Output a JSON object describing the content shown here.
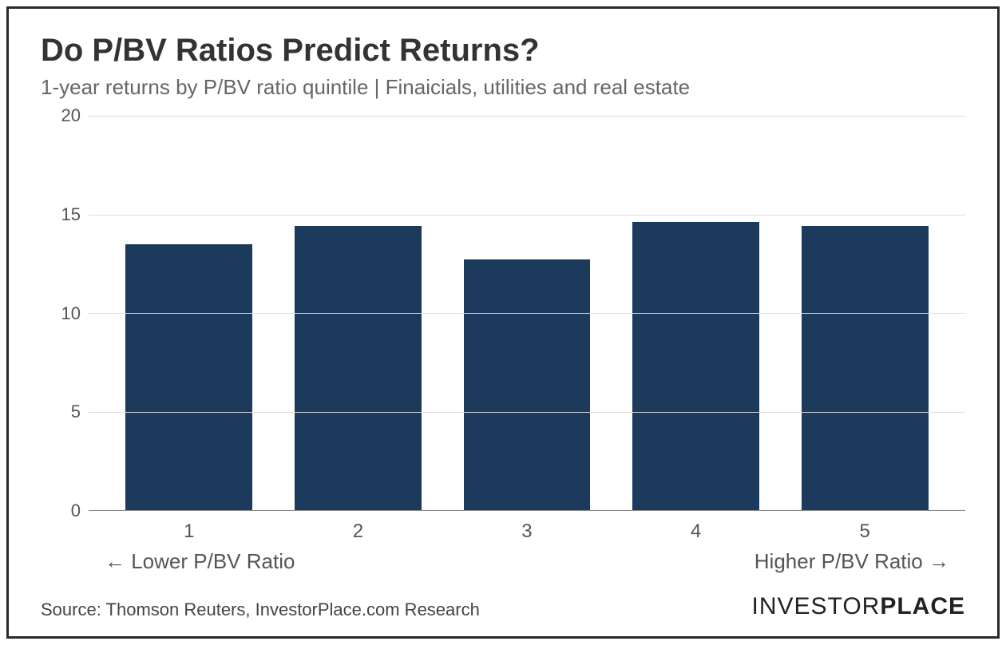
{
  "chart": {
    "type": "bar",
    "title": "Do P/BV Ratios Predict Returns?",
    "subtitle": "1-year returns by P/BV ratio quintile | Finaicials, utilities and real estate",
    "categories": [
      "1",
      "2",
      "3",
      "4",
      "5"
    ],
    "values": [
      13.5,
      14.4,
      12.7,
      14.6,
      14.4
    ],
    "bar_color": "#1b3a5c",
    "ylim": [
      0,
      20
    ],
    "yticks": [
      0,
      5,
      10,
      15,
      20
    ],
    "grid_color": "#dddddd",
    "axis_line_color": "#888888",
    "background_color": "#ffffff",
    "title_fontsize": 40,
    "title_color": "#333333",
    "subtitle_fontsize": 26,
    "subtitle_color": "#666666",
    "tick_fontsize": 22,
    "tick_color": "#555555",
    "xtick_fontsize": 24,
    "axis_label_fontsize": 26,
    "bar_width_ratio": 0.75,
    "x_axis_label_left": "← Lower P/BV Ratio",
    "x_axis_label_right": "Higher P/BV Ratio →"
  },
  "footer": {
    "source": "Source: Thomson Reuters, InvestorPlace.com Research",
    "brand_light": "INVESTOR",
    "brand_bold": "PLACE"
  }
}
